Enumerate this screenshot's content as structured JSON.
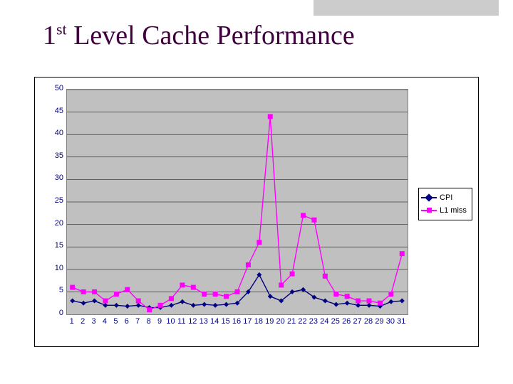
{
  "title_prefix": "1",
  "title_sup": "st",
  "title_rest": " Level Cache Performance",
  "chart": {
    "type": "line",
    "background_color": "#ffffff",
    "plot_background_color": "#c0c0c0",
    "grid_color": "#000000",
    "grid_line_width": 0.5,
    "axis_label_color": "#000080",
    "axis_label_fontsize": 11,
    "ylim": [
      0,
      50
    ],
    "ytick_step": 5,
    "yticks": [
      0,
      5,
      10,
      15,
      20,
      25,
      30,
      35,
      40,
      45,
      50
    ],
    "x_categories": [
      "1",
      "2",
      "3",
      "4",
      "5",
      "6",
      "7",
      "8",
      "9",
      "10",
      "11",
      "12",
      "13",
      "14",
      "15",
      "16",
      "17",
      "18",
      "19",
      "20",
      "21",
      "22",
      "23",
      "24",
      "25",
      "26",
      "27",
      "28",
      "29",
      "30",
      "31"
    ],
    "series": [
      {
        "name": "CPI",
        "color": "#000080",
        "line_width": 1.4,
        "marker": "diamond",
        "marker_size": 7,
        "values": [
          3.0,
          2.5,
          3.0,
          2.0,
          2.0,
          1.8,
          2.0,
          1.5,
          1.5,
          2.0,
          2.8,
          2.0,
          2.2,
          2.0,
          2.2,
          2.5,
          5.0,
          8.8,
          4.0,
          3.0,
          5.0,
          5.5,
          3.8,
          3.0,
          2.2,
          2.5,
          2.0,
          2.0,
          1.8,
          2.8,
          3.0
        ]
      },
      {
        "name": "L1 miss",
        "color": "#ff00ff",
        "line_width": 1.4,
        "marker": "square",
        "marker_size": 7,
        "values": [
          6.0,
          5.0,
          5.0,
          3.0,
          4.5,
          5.5,
          3.0,
          1.0,
          2.0,
          3.5,
          6.5,
          6.0,
          4.5,
          4.5,
          4.0,
          5.0,
          11.0,
          16.0,
          44.0,
          6.5,
          9.0,
          22.0,
          21.0,
          8.5,
          4.5,
          4.0,
          3.0,
          3.0,
          2.5,
          4.5,
          13.5
        ]
      }
    ],
    "legend": {
      "position": "right",
      "border_color": "#000000",
      "items": [
        "CPI",
        "L1 miss"
      ]
    }
  }
}
